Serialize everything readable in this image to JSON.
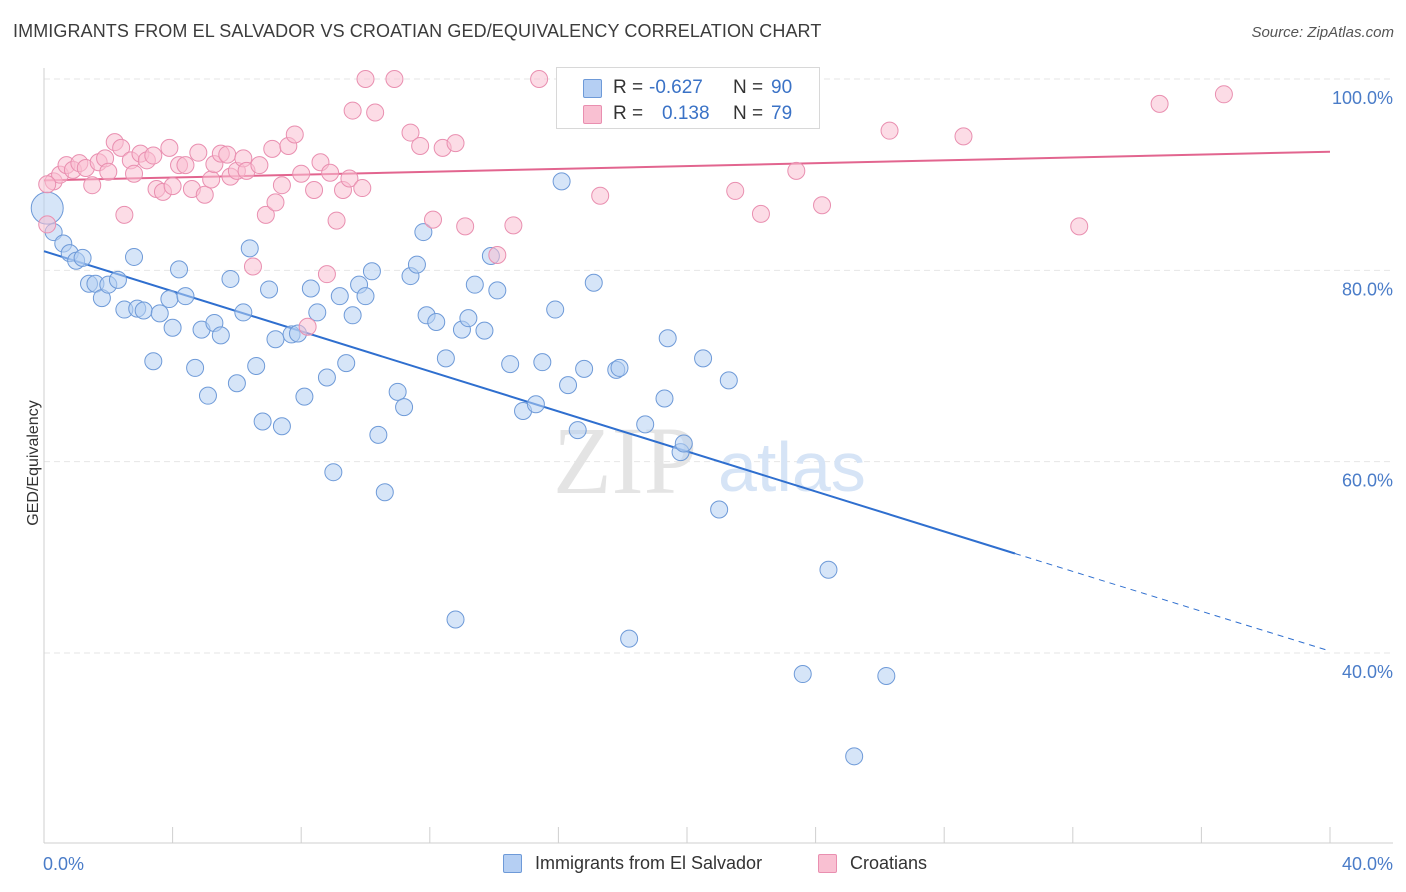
{
  "title": "IMMIGRANTS FROM EL SALVADOR VS CROATIAN GED/EQUIVALENCY CORRELATION CHART",
  "source": "Source: ZipAtlas.com",
  "watermark": {
    "zip": "ZIP",
    "atlas": "atlas"
  },
  "legend": {
    "rows": [
      {
        "r_label": "R =",
        "r_value": "-0.627",
        "n_label": "N =",
        "n_value": "90",
        "swatch_fill": "#b5cff3",
        "swatch_stroke": "#6e9ad8"
      },
      {
        "r_label": "R =",
        "r_value": "0.138",
        "n_label": "N =",
        "n_value": "79",
        "swatch_fill": "#f9c0d2",
        "swatch_stroke": "#e98fb0"
      }
    ]
  },
  "bottom_legend": {
    "items": [
      {
        "label": "Immigrants from El Salvador",
        "fill": "#b5cff3",
        "stroke": "#6e9ad8"
      },
      {
        "label": "Croatians",
        "fill": "#f9c0d2",
        "stroke": "#e98fb0"
      }
    ]
  },
  "chart_data": {
    "type": "scatter",
    "title": "IMMIGRANTS FROM EL SALVADOR VS CROATIAN GED/EQUIVALENCY CORRELATION CHART",
    "xlabel": "",
    "ylabel": "GED/Equivalency",
    "xlim": [
      0,
      40
    ],
    "ylim": [
      20,
      101
    ],
    "x_tick_labels": {
      "left": "0.0%",
      "right": "40.0%"
    },
    "y_ticks": [
      {
        "value": 100,
        "label": "100.0%"
      },
      {
        "value": 80,
        "label": "80.0%"
      },
      {
        "value": 60,
        "label": "60.0%"
      },
      {
        "value": 40,
        "label": "40.0%"
      }
    ],
    "grid": true,
    "legend_position": "top-center",
    "series": [
      {
        "name": "Immigrants from El Salvador",
        "color": "#6e9ad8",
        "fill": "#b5cff3",
        "line_color": "#2f6fcf",
        "trend": {
          "x0": 0,
          "y0": 82,
          "x1": 30.2,
          "y1": 50.4,
          "dash_to_x": 40,
          "dash_to_y": 40.2
        },
        "points": [
          [
            0.1,
            86.5
          ],
          [
            0.3,
            84.0
          ],
          [
            0.6,
            82.8
          ],
          [
            0.8,
            81.8
          ],
          [
            1.0,
            81.0
          ],
          [
            1.2,
            81.3
          ],
          [
            1.4,
            78.6
          ],
          [
            1.6,
            78.6
          ],
          [
            1.8,
            77.1
          ],
          [
            2.0,
            78.5
          ],
          [
            2.3,
            79.0
          ],
          [
            2.5,
            75.9
          ],
          [
            2.8,
            81.4
          ],
          [
            2.9,
            76.0
          ],
          [
            3.1,
            75.8
          ],
          [
            3.4,
            70.5
          ],
          [
            3.6,
            75.5
          ],
          [
            3.9,
            77.0
          ],
          [
            4.0,
            74.0
          ],
          [
            4.2,
            80.1
          ],
          [
            4.4,
            77.3
          ],
          [
            4.7,
            69.8
          ],
          [
            4.9,
            73.8
          ],
          [
            5.1,
            66.9
          ],
          [
            5.3,
            74.5
          ],
          [
            5.5,
            73.2
          ],
          [
            5.8,
            79.1
          ],
          [
            6.0,
            68.2
          ],
          [
            6.2,
            75.6
          ],
          [
            6.4,
            82.3
          ],
          [
            6.6,
            70.0
          ],
          [
            6.8,
            64.2
          ],
          [
            7.0,
            78.0
          ],
          [
            7.2,
            72.8
          ],
          [
            7.4,
            63.7
          ],
          [
            7.7,
            73.3
          ],
          [
            7.9,
            73.4
          ],
          [
            8.1,
            66.8
          ],
          [
            8.3,
            78.1
          ],
          [
            8.5,
            75.6
          ],
          [
            8.8,
            68.8
          ],
          [
            9.0,
            58.9
          ],
          [
            9.2,
            77.3
          ],
          [
            9.4,
            70.3
          ],
          [
            9.6,
            75.3
          ],
          [
            9.8,
            78.5
          ],
          [
            10.0,
            77.3
          ],
          [
            10.2,
            79.9
          ],
          [
            10.4,
            62.8
          ],
          [
            10.6,
            56.8
          ],
          [
            11.0,
            67.3
          ],
          [
            11.2,
            65.7
          ],
          [
            11.4,
            79.4
          ],
          [
            11.6,
            80.6
          ],
          [
            11.8,
            84.0
          ],
          [
            11.9,
            75.3
          ],
          [
            12.2,
            74.6
          ],
          [
            12.5,
            70.8
          ],
          [
            12.8,
            43.5
          ],
          [
            13.0,
            73.8
          ],
          [
            13.2,
            75.0
          ],
          [
            13.4,
            78.5
          ],
          [
            13.7,
            73.7
          ],
          [
            13.9,
            81.5
          ],
          [
            14.1,
            77.9
          ],
          [
            14.5,
            70.2
          ],
          [
            14.9,
            65.3
          ],
          [
            15.3,
            66.0
          ],
          [
            15.5,
            70.4
          ],
          [
            15.9,
            75.9
          ],
          [
            16.1,
            89.3
          ],
          [
            16.3,
            68.0
          ],
          [
            16.6,
            63.3
          ],
          [
            16.8,
            69.7
          ],
          [
            17.1,
            78.7
          ],
          [
            17.8,
            69.6
          ],
          [
            17.9,
            69.8
          ],
          [
            18.2,
            41.5
          ],
          [
            18.7,
            63.9
          ],
          [
            19.3,
            66.6
          ],
          [
            19.4,
            72.9
          ],
          [
            19.8,
            61.0
          ],
          [
            19.9,
            61.9
          ],
          [
            20.5,
            70.8
          ],
          [
            21.0,
            55.0
          ],
          [
            21.3,
            68.5
          ],
          [
            23.6,
            37.8
          ],
          [
            24.4,
            48.7
          ],
          [
            25.2,
            29.2
          ],
          [
            26.2,
            37.6
          ]
        ]
      },
      {
        "name": "Croatians",
        "color": "#e98fb0",
        "fill": "#f9c0d2",
        "line_color": "#e2658f",
        "trend": {
          "x0": 0,
          "y0": 89.4,
          "x1": 40,
          "y1": 92.4
        },
        "points": [
          [
            0.1,
            84.8
          ],
          [
            0.3,
            89.3
          ],
          [
            0.5,
            90.0
          ],
          [
            0.7,
            91.0
          ],
          [
            0.9,
            90.5
          ],
          [
            1.1,
            91.2
          ],
          [
            1.3,
            90.7
          ],
          [
            1.5,
            88.9
          ],
          [
            1.7,
            91.3
          ],
          [
            1.9,
            91.7
          ],
          [
            2.0,
            90.3
          ],
          [
            2.2,
            93.4
          ],
          [
            2.4,
            92.8
          ],
          [
            2.5,
            85.8
          ],
          [
            2.7,
            91.5
          ],
          [
            2.8,
            90.1
          ],
          [
            3.0,
            92.2
          ],
          [
            3.2,
            91.5
          ],
          [
            3.4,
            92.0
          ],
          [
            3.5,
            88.5
          ],
          [
            3.7,
            88.2
          ],
          [
            3.9,
            92.8
          ],
          [
            4.0,
            88.8
          ],
          [
            4.2,
            91.0
          ],
          [
            4.4,
            91.0
          ],
          [
            4.6,
            88.5
          ],
          [
            4.8,
            92.3
          ],
          [
            5.0,
            87.9
          ],
          [
            5.2,
            89.5
          ],
          [
            5.3,
            91.1
          ],
          [
            5.5,
            92.2
          ],
          [
            5.7,
            92.1
          ],
          [
            5.8,
            89.8
          ],
          [
            6.0,
            90.4
          ],
          [
            6.2,
            91.7
          ],
          [
            6.3,
            90.4
          ],
          [
            6.5,
            80.4
          ],
          [
            6.7,
            91.0
          ],
          [
            6.9,
            85.8
          ],
          [
            7.1,
            92.7
          ],
          [
            7.2,
            87.1
          ],
          [
            7.4,
            88.9
          ],
          [
            7.6,
            93.0
          ],
          [
            7.8,
            94.2
          ],
          [
            8.0,
            90.1
          ],
          [
            8.2,
            74.1
          ],
          [
            8.4,
            88.4
          ],
          [
            8.6,
            91.3
          ],
          [
            8.8,
            79.6
          ],
          [
            8.9,
            90.2
          ],
          [
            9.1,
            85.2
          ],
          [
            9.3,
            88.4
          ],
          [
            9.5,
            89.6
          ],
          [
            9.6,
            96.7
          ],
          [
            9.9,
            88.6
          ],
          [
            10.0,
            100.0
          ],
          [
            10.3,
            96.5
          ],
          [
            10.9,
            100.0
          ],
          [
            11.4,
            94.4
          ],
          [
            11.7,
            93.0
          ],
          [
            12.1,
            85.3
          ],
          [
            12.4,
            92.8
          ],
          [
            12.8,
            93.3
          ],
          [
            13.1,
            84.6
          ],
          [
            14.1,
            81.6
          ],
          [
            14.6,
            84.7
          ],
          [
            15.4,
            100.0
          ],
          [
            17.3,
            87.8
          ],
          [
            18.4,
            100.0
          ],
          [
            21.5,
            88.3
          ],
          [
            22.3,
            85.9
          ],
          [
            23.4,
            90.4
          ],
          [
            24.2,
            86.8
          ],
          [
            26.3,
            94.6
          ],
          [
            28.6,
            94.0
          ],
          [
            32.2,
            84.6
          ],
          [
            34.7,
            97.4
          ],
          [
            36.7,
            98.4
          ],
          [
            0.1,
            89.0
          ]
        ]
      }
    ]
  }
}
